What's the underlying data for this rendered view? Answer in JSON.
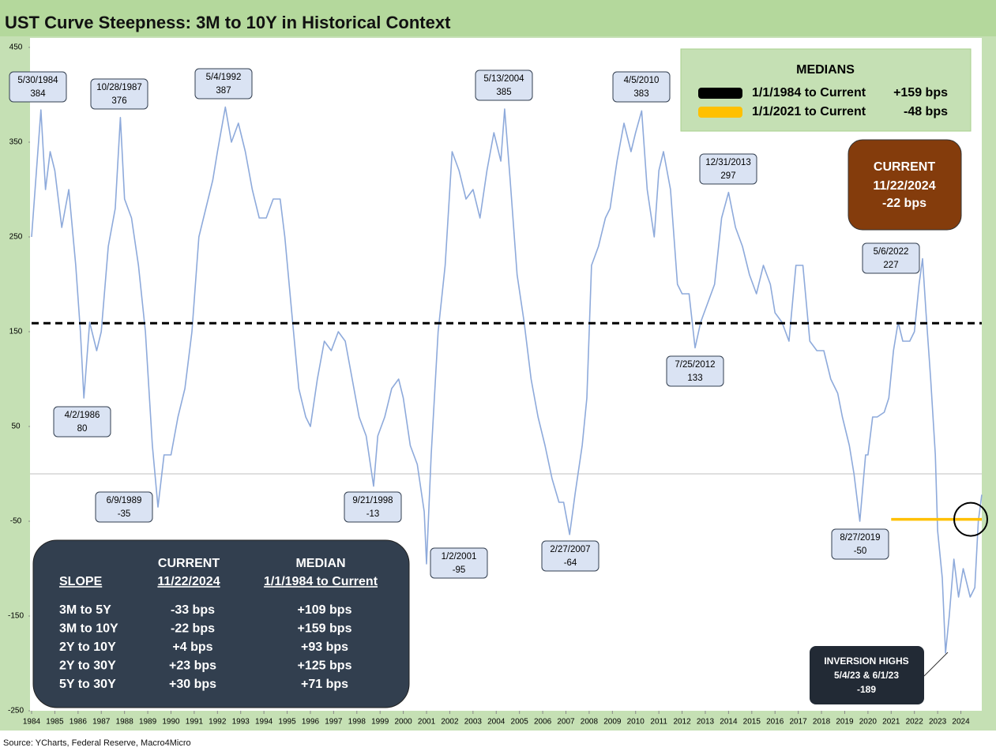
{
  "chart_data": {
    "type": "line",
    "title": "UST Curve Steepness: 3M to 10Y in Historical Context",
    "source": "Source: YCharts, Federal Reserve, Macro4Micro",
    "xlim": [
      1984,
      2024.9
    ],
    "ylim": [
      -250,
      450
    ],
    "yticks": [
      -250,
      -150,
      -50,
      50,
      150,
      250,
      350,
      450
    ],
    "xticks": [
      1984,
      1985,
      1986,
      1987,
      1988,
      1989,
      1990,
      1991,
      1992,
      1993,
      1994,
      1995,
      1996,
      1997,
      1998,
      1999,
      2000,
      2001,
      2002,
      2003,
      2004,
      2005,
      2006,
      2007,
      2008,
      2009,
      2010,
      2011,
      2012,
      2013,
      2014,
      2015,
      2016,
      2017,
      2018,
      2019,
      2020,
      2021,
      2022,
      2023,
      2024
    ],
    "x": [
      1984.0,
      1984.4,
      1984.6,
      1984.8,
      1985.0,
      1985.3,
      1985.6,
      1985.9,
      1986.1,
      1986.25,
      1986.5,
      1986.8,
      1987.0,
      1987.3,
      1987.6,
      1987.82,
      1988.0,
      1988.3,
      1988.6,
      1988.9,
      1989.2,
      1989.44,
      1989.7,
      1990.0,
      1990.3,
      1990.6,
      1990.9,
      1991.2,
      1991.5,
      1991.8,
      1992.0,
      1992.34,
      1992.6,
      1992.9,
      1993.2,
      1993.5,
      1993.8,
      1994.1,
      1994.4,
      1994.7,
      1994.9,
      1995.2,
      1995.5,
      1995.8,
      1996.0,
      1996.3,
      1996.6,
      1996.9,
      1997.2,
      1997.5,
      1997.8,
      1998.1,
      1998.4,
      1998.72,
      1998.9,
      1999.2,
      1999.5,
      1999.8,
      2000.0,
      2000.3,
      2000.6,
      2000.9,
      2001.0,
      2001.2,
      2001.5,
      2001.8,
      2002.1,
      2002.4,
      2002.7,
      2003.0,
      2003.3,
      2003.6,
      2003.9,
      2004.2,
      2004.36,
      2004.6,
      2004.9,
      2005.2,
      2005.5,
      2005.8,
      2006.1,
      2006.4,
      2006.7,
      2006.9,
      2007.16,
      2007.4,
      2007.7,
      2007.9,
      2008.1,
      2008.4,
      2008.7,
      2008.9,
      2009.2,
      2009.5,
      2009.8,
      2010.0,
      2010.26,
      2010.5,
      2010.8,
      2011.0,
      2011.2,
      2011.5,
      2011.8,
      2012.0,
      2012.3,
      2012.56,
      2012.8,
      2013.1,
      2013.4,
      2013.7,
      2014.0,
      2014.3,
      2014.6,
      2014.9,
      2015.2,
      2015.5,
      2015.8,
      2016.0,
      2016.3,
      2016.6,
      2016.9,
      2017.2,
      2017.5,
      2017.8,
      2018.1,
      2018.4,
      2018.7,
      2018.9,
      2019.2,
      2019.4,
      2019.65,
      2019.9,
      2020.0,
      2020.2,
      2020.4,
      2020.7,
      2020.9,
      2021.1,
      2021.3,
      2021.5,
      2021.8,
      2022.0,
      2022.2,
      2022.35,
      2022.5,
      2022.7,
      2022.9,
      2023.0,
      2023.2,
      2023.34,
      2023.5,
      2023.7,
      2023.9,
      2024.1,
      2024.4,
      2024.6,
      2024.75,
      2024.9
    ],
    "series": [
      {
        "color": "#8eaadb",
        "values": [
          250,
          384,
          300,
          340,
          320,
          260,
          300,
          220,
          150,
          80,
          160,
          130,
          150,
          240,
          280,
          376,
          290,
          270,
          220,
          150,
          30,
          -35,
          20,
          20,
          60,
          90,
          150,
          250,
          280,
          310,
          340,
          387,
          350,
          370,
          340,
          300,
          270,
          270,
          290,
          290,
          250,
          170,
          90,
          60,
          50,
          100,
          140,
          130,
          150,
          140,
          100,
          60,
          40,
          -13,
          40,
          60,
          90,
          100,
          80,
          30,
          10,
          -40,
          -95,
          20,
          150,
          220,
          340,
          320,
          290,
          300,
          270,
          320,
          360,
          330,
          385,
          310,
          210,
          160,
          100,
          60,
          30,
          -5,
          -30,
          -30,
          -64,
          -20,
          30,
          80,
          220,
          240,
          270,
          280,
          330,
          370,
          340,
          360,
          383,
          300,
          250,
          320,
          340,
          300,
          200,
          190,
          190,
          133,
          160,
          180,
          200,
          270,
          297,
          260,
          240,
          210,
          190,
          220,
          200,
          170,
          160,
          140,
          220,
          220,
          140,
          130,
          130,
          100,
          85,
          60,
          30,
          0,
          -50,
          20,
          20,
          60,
          60,
          65,
          80,
          130,
          160,
          140,
          140,
          150,
          200,
          227,
          170,
          100,
          20,
          -60,
          -110,
          -189,
          -150,
          -90,
          -130,
          -100,
          -130,
          -120,
          -50,
          -22
        ]
      }
    ],
    "annotations": [
      {
        "date": "5/30/1984",
        "value": 384
      },
      {
        "date": "10/28/1987",
        "value": 376
      },
      {
        "date": "5/4/1992",
        "value": 387
      },
      {
        "date": "5/13/2004",
        "value": 385
      },
      {
        "date": "4/5/2010",
        "value": 383
      },
      {
        "date": "12/31/2013",
        "value": 297
      },
      {
        "date": "5/6/2022",
        "value": 227
      },
      {
        "date": "7/25/2012",
        "value": 133
      },
      {
        "date": "4/2/1986",
        "value": 80
      },
      {
        "date": "6/9/1989",
        "value": -35
      },
      {
        "date": "9/21/1998",
        "value": -13
      },
      {
        "date": "1/2/2001",
        "value": -95
      },
      {
        "date": "2/27/2007",
        "value": -64
      },
      {
        "date": "8/27/2019",
        "value": -50
      }
    ],
    "medians": {
      "title": "MEDIANS",
      "entries": [
        {
          "label": "1/1/1984 to Current",
          "value_label": "+159 bps",
          "value": 159,
          "from": 1984,
          "color": "#000000"
        },
        {
          "label": "1/1/2021 to Current",
          "value_label": "-48 bps",
          "value": -48,
          "from": 2021,
          "color": "#ffc000"
        }
      ]
    },
    "current": {
      "title": "CURRENT",
      "date": "11/22/2024",
      "value_label": "-22 bps",
      "value": -22
    },
    "inversion": {
      "title": "INVERSION HIGHS",
      "dates": "5/4/23 & 6/1/23",
      "value": -189
    },
    "table": {
      "header1": [
        "",
        "CURRENT",
        "MEDIAN"
      ],
      "header2": [
        "SLOPE",
        "11/22/2024",
        "1/1/1984 to Current"
      ],
      "rows": [
        [
          "3M to 5Y",
          "-33 bps",
          "+109 bps"
        ],
        [
          "3M to 10Y",
          "-22 bps",
          "+159 bps"
        ],
        [
          "2Y to 10Y",
          "+4 bps",
          "+93 bps"
        ],
        [
          "2Y to 30Y",
          "+23 bps",
          "+125 bps"
        ],
        [
          "5Y to 30Y",
          "+30 bps",
          "+71 bps"
        ]
      ]
    }
  }
}
